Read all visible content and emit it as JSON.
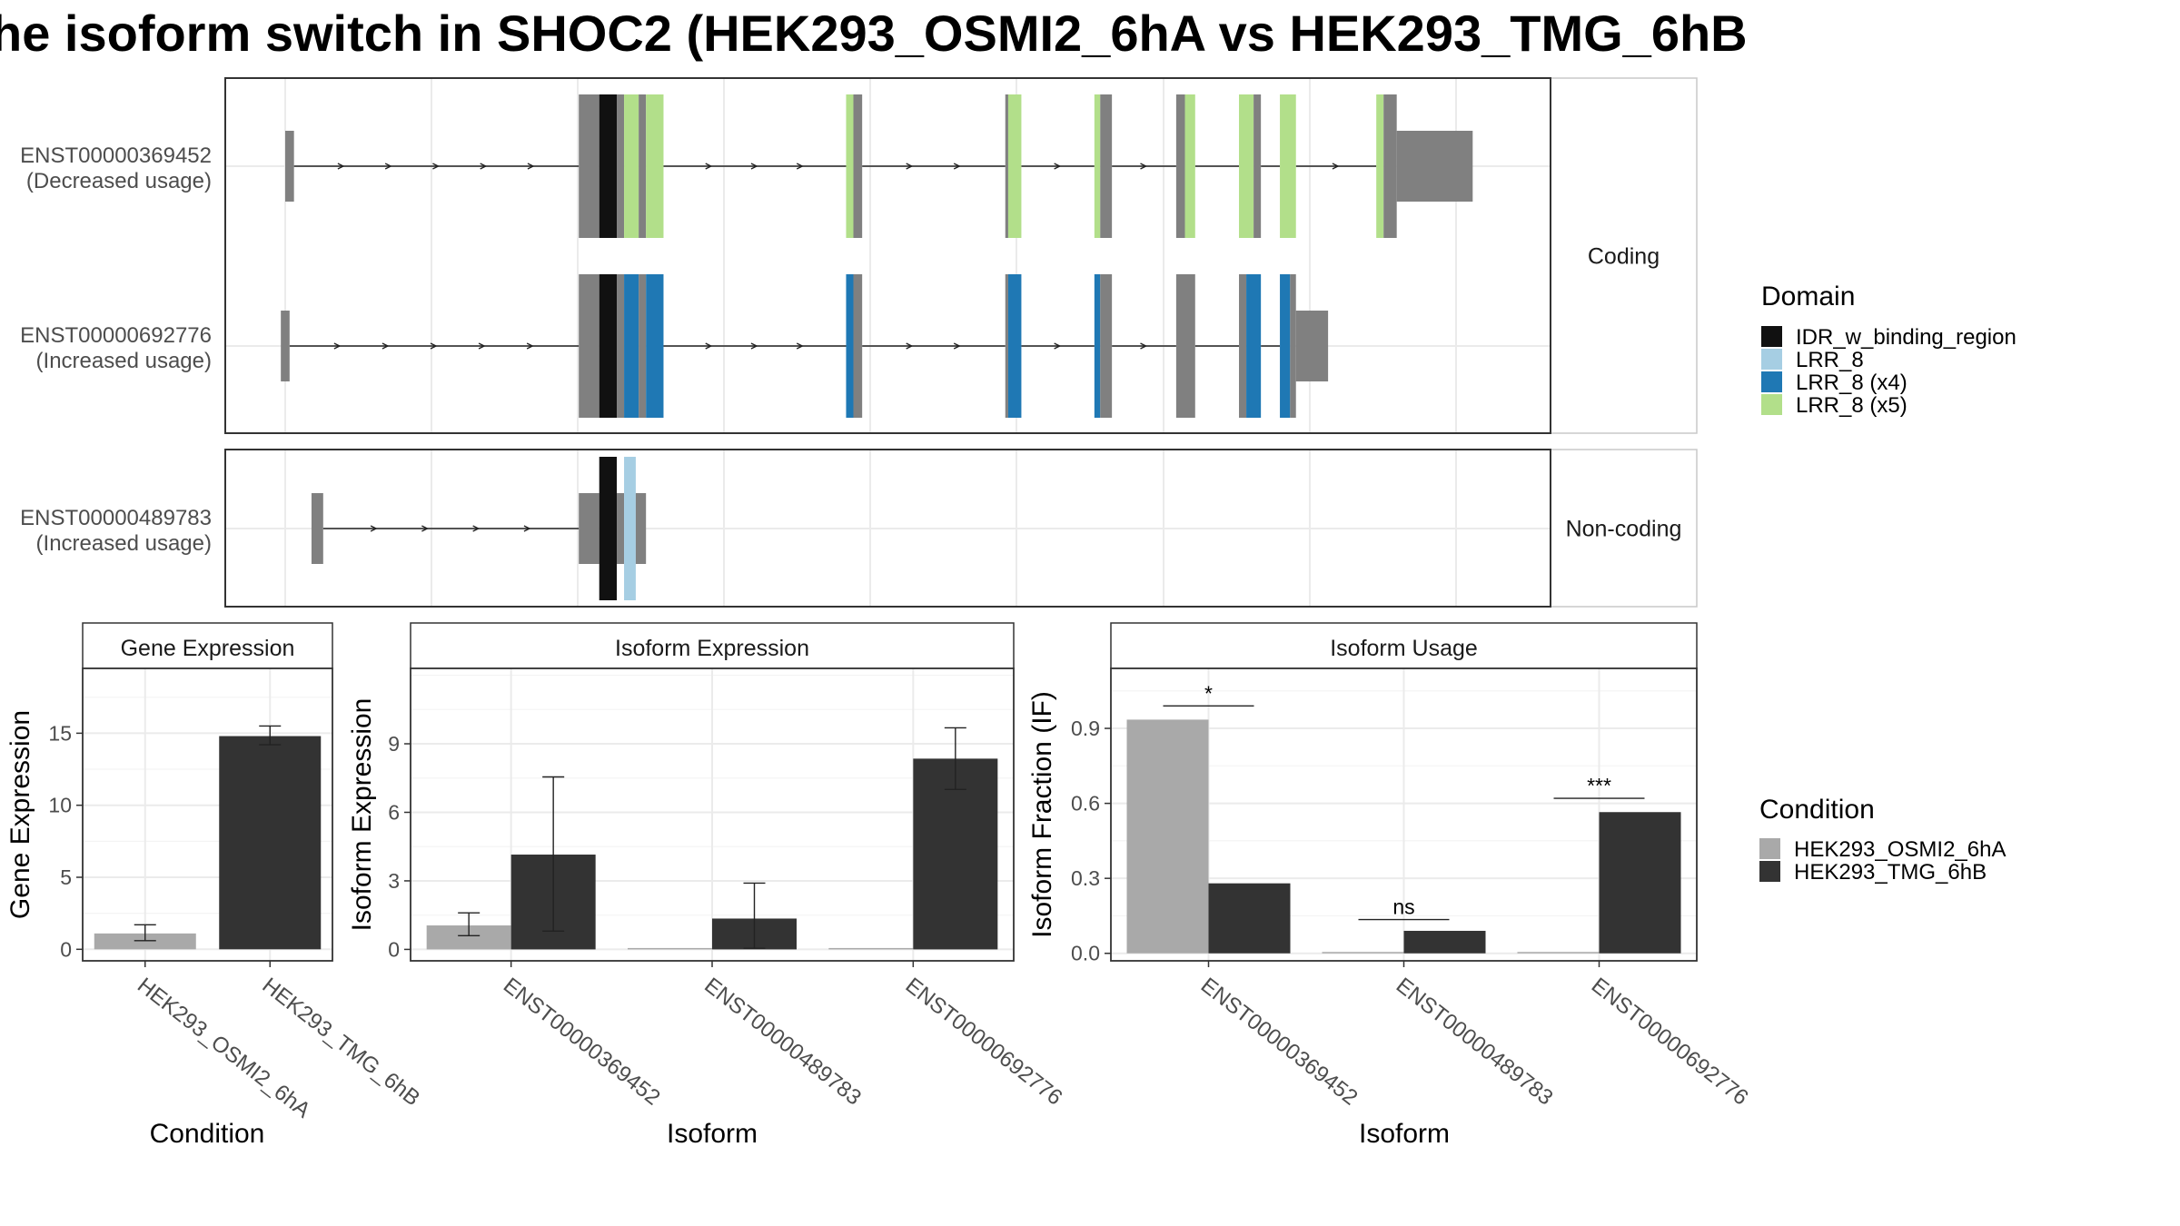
{
  "title": "he isoform switch in SHOC2 (HEK293_OSMI2_6hA vs HEK293_TMG_6hB",
  "colors": {
    "osmi": "#A9A9A9",
    "tmg": "#333333",
    "idr": "#111111",
    "lrr": "#A6CEE3",
    "lrr_x4": "#1F78B4",
    "lrr_x5": "#B2DF8A",
    "exon": "#808080",
    "grid": "#EBEBEB"
  },
  "structure": {
    "panels": [
      {
        "strip": "Coding",
        "tracks": [
          {
            "id": "ENST00000369452",
            "usage": "(Decreased usage)",
            "exons": [
              [
                0.0,
                0.006,
                "utr"
              ],
              [
                0.201,
                0.215,
                "cds"
              ],
              [
                0.215,
                0.227,
                "IDR_w_binding_region"
              ],
              [
                0.227,
                0.232,
                "cds"
              ],
              [
                0.232,
                0.242,
                "LRR_8 (x5)"
              ],
              [
                0.242,
                0.247,
                "cds"
              ],
              [
                0.247,
                0.259,
                "LRR_8 (x5)"
              ],
              [
                0.384,
                0.389,
                "LRR_8 (x5)"
              ],
              [
                0.389,
                0.395,
                "cds"
              ],
              [
                0.493,
                0.495,
                "cds"
              ],
              [
                0.495,
                0.504,
                "LRR_8 (x5)"
              ],
              [
                0.554,
                0.558,
                "LRR_8 (x5)"
              ],
              [
                0.558,
                0.566,
                "cds"
              ],
              [
                0.61,
                0.616,
                "cds"
              ],
              [
                0.616,
                0.623,
                "LRR_8 (x5)"
              ],
              [
                0.653,
                0.663,
                "LRR_8 (x5)"
              ],
              [
                0.663,
                0.668,
                "cds"
              ],
              [
                0.681,
                0.692,
                "LRR_8 (x5)"
              ],
              [
                0.747,
                0.752,
                "LRR_8 (x5)"
              ],
              [
                0.752,
                0.761,
                "cds"
              ],
              [
                0.761,
                0.813,
                "utr"
              ]
            ]
          },
          {
            "id": "ENST00000692776",
            "usage": "(Increased usage)",
            "exons": [
              [
                -0.003,
                0.003,
                "utr"
              ],
              [
                0.201,
                0.215,
                "cds"
              ],
              [
                0.215,
                0.227,
                "IDR_w_binding_region"
              ],
              [
                0.227,
                0.232,
                "cds"
              ],
              [
                0.232,
                0.242,
                "LRR_8 (x4)"
              ],
              [
                0.242,
                0.247,
                "cds"
              ],
              [
                0.247,
                0.259,
                "LRR_8 (x4)"
              ],
              [
                0.384,
                0.389,
                "LRR_8 (x4)"
              ],
              [
                0.389,
                0.395,
                "cds"
              ],
              [
                0.493,
                0.495,
                "cds"
              ],
              [
                0.495,
                0.504,
                "LRR_8 (x4)"
              ],
              [
                0.554,
                0.558,
                "LRR_8 (x4)"
              ],
              [
                0.558,
                0.566,
                "cds"
              ],
              [
                0.61,
                0.623,
                "cds"
              ],
              [
                0.653,
                0.658,
                "cds"
              ],
              [
                0.658,
                0.668,
                "LRR_8 (x4)"
              ],
              [
                0.681,
                0.688,
                "LRR_8 (x4)"
              ],
              [
                0.688,
                0.692,
                "cds"
              ],
              [
                0.692,
                0.714,
                "utr"
              ]
            ]
          }
        ]
      },
      {
        "strip": "Non-coding",
        "tracks": [
          {
            "id": "ENST00000489783",
            "usage": "(Increased usage)",
            "exons": [
              [
                0.018,
                0.026,
                "utr"
              ],
              [
                0.201,
                0.215,
                "utr"
              ],
              [
                0.215,
                0.227,
                "IDR_w_binding_region"
              ],
              [
                0.227,
                0.232,
                "utr"
              ],
              [
                0.232,
                0.24,
                "LRR_8"
              ],
              [
                0.24,
                0.247,
                "utr"
              ]
            ]
          }
        ]
      }
    ]
  },
  "legend_domain": {
    "title": "Domain",
    "items": [
      {
        "label": "IDR_w_binding_region",
        "color": "#111111"
      },
      {
        "label": "LRR_8",
        "color": "#A6CEE3"
      },
      {
        "label": "LRR_8 (x4)",
        "color": "#1F78B4"
      },
      {
        "label": "LRR_8 (x5)",
        "color": "#B2DF8A"
      }
    ]
  },
  "legend_condition": {
    "title": "Condition",
    "items": [
      {
        "label": "HEK293_OSMI2_6hA",
        "color": "#A9A9A9"
      },
      {
        "label": "HEK293_TMG_6hB",
        "color": "#333333"
      }
    ]
  },
  "chart_data": [
    {
      "type": "bar",
      "title": "Gene Expression",
      "xlabel": "Condition",
      "ylabel": "Gene Expression",
      "categories": [
        "HEK293_OSMI2_6hA",
        "HEK293_TMG_6hB"
      ],
      "values": [
        1.1,
        14.8
      ],
      "errors": [
        [
          0.6,
          1.7
        ],
        [
          14.2,
          15.5
        ]
      ],
      "ylim": [
        -0.8,
        19.5
      ],
      "yticks": [
        0,
        5,
        10,
        15
      ]
    },
    {
      "type": "bar",
      "title": "Isoform Expression",
      "xlabel": "Isoform",
      "ylabel": "Isoform Expression",
      "categories": [
        "ENST00000369452",
        "ENST00000489783",
        "ENST00000692776"
      ],
      "series": [
        {
          "name": "HEK293_OSMI2_6hA",
          "values": [
            1.05,
            0.0,
            0.0
          ],
          "errors": [
            [
              0.6,
              1.6
            ],
            [
              0.0,
              0.0
            ],
            [
              0.0,
              0.0
            ]
          ]
        },
        {
          "name": "HEK293_TMG_6hB",
          "values": [
            4.15,
            1.35,
            8.35
          ],
          "errors": [
            [
              0.8,
              7.55
            ],
            [
              0.05,
              2.9
            ],
            [
              7.0,
              9.7
            ]
          ]
        }
      ],
      "ylim": [
        -0.5,
        12.3
      ],
      "yticks": [
        0,
        3,
        6,
        9
      ]
    },
    {
      "type": "bar",
      "title": "Isoform Usage",
      "xlabel": "Isoform",
      "ylabel": "Isoform Fraction (IF)",
      "categories": [
        "ENST00000369452",
        "ENST00000489783",
        "ENST00000692776"
      ],
      "series": [
        {
          "name": "HEK293_OSMI2_6hA",
          "values": [
            0.935,
            0.0,
            0.0
          ]
        },
        {
          "name": "HEK293_TMG_6hB",
          "values": [
            0.28,
            0.09,
            0.565
          ]
        }
      ],
      "significance": [
        {
          "category": 0,
          "label": "*",
          "y": 0.99
        },
        {
          "category": 1,
          "label": "ns",
          "y": 0.135
        },
        {
          "category": 2,
          "label": "***",
          "y": 0.62
        }
      ],
      "ylim": [
        -0.03,
        1.14
      ],
      "yticks": [
        "0.0",
        "0.3",
        "0.6",
        "0.9"
      ]
    }
  ]
}
